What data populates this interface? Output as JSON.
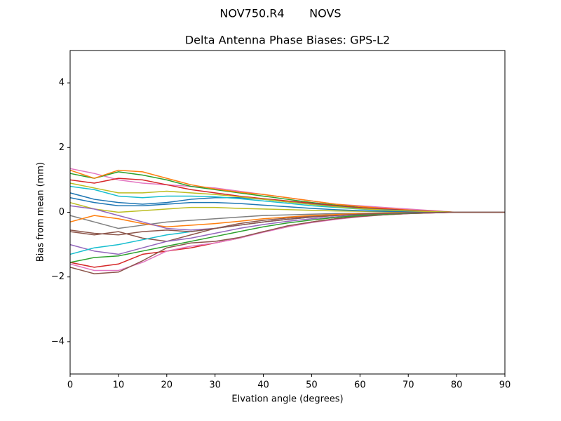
{
  "chart_data": {
    "type": "line",
    "suptitle": "NOV750.R4       NOVS",
    "title": "Delta Antenna Phase Biases: GPS-L2",
    "xlabel": "Elvation angle (degrees)",
    "ylabel": "Bias from mean (mm)",
    "x": [
      0,
      5,
      10,
      15,
      20,
      25,
      30,
      35,
      40,
      45,
      50,
      55,
      60,
      65,
      70,
      75,
      80,
      85,
      90
    ],
    "xlim": [
      0,
      90
    ],
    "xticks": [
      0,
      10,
      20,
      30,
      40,
      50,
      60,
      70,
      80,
      90
    ],
    "ylim": [
      -5,
      5
    ],
    "yticks": [
      {
        "value": -4,
        "label": "−4"
      },
      {
        "value": -2,
        "label": "−2"
      },
      0,
      2,
      4
    ],
    "series": [
      {
        "color": "#e377c2",
        "values": [
          1.35,
          1.2,
          1.0,
          0.9,
          0.85,
          0.8,
          0.75,
          0.65,
          0.55,
          0.45,
          0.35,
          0.25,
          0.2,
          0.15,
          0.1,
          0.05,
          0,
          0,
          0
        ]
      },
      {
        "color": "#2ca02c",
        "values": [
          1.2,
          1.05,
          1.25,
          1.15,
          1.0,
          0.8,
          0.7,
          0.6,
          0.5,
          0.4,
          0.3,
          0.22,
          0.15,
          0.1,
          0.06,
          0.03,
          0,
          0,
          0
        ]
      },
      {
        "color": "#ff7f0e",
        "values": [
          1.3,
          1.05,
          1.3,
          1.25,
          1.05,
          0.85,
          0.72,
          0.62,
          0.55,
          0.45,
          0.35,
          0.25,
          0.18,
          0.12,
          0.07,
          0.03,
          0,
          0,
          0
        ]
      },
      {
        "color": "#d62728",
        "values": [
          1.0,
          0.9,
          1.05,
          1.0,
          0.85,
          0.7,
          0.6,
          0.5,
          0.42,
          0.35,
          0.28,
          0.2,
          0.14,
          0.1,
          0.06,
          0.03,
          0,
          0,
          0
        ]
      },
      {
        "color": "#1f77b4",
        "values": [
          0.6,
          0.4,
          0.3,
          0.25,
          0.3,
          0.4,
          0.45,
          0.45,
          0.4,
          0.32,
          0.25,
          0.18,
          0.12,
          0.08,
          0.05,
          0.02,
          0,
          0,
          0
        ]
      },
      {
        "color": "#17becf",
        "values": [
          0.8,
          0.7,
          0.5,
          0.45,
          0.5,
          0.5,
          0.48,
          0.42,
          0.35,
          0.28,
          0.2,
          0.15,
          0.1,
          0.06,
          0.03,
          0.01,
          0,
          0,
          0
        ]
      },
      {
        "color": "#bcbd22",
        "values": [
          0.3,
          0.1,
          0,
          0.05,
          0.1,
          0.15,
          0.15,
          0.12,
          0.1,
          0.08,
          0.06,
          0.04,
          0.03,
          0.02,
          0.01,
          0,
          0,
          0,
          0
        ]
      },
      {
        "color": "#7f7f7f",
        "values": [
          -0.1,
          -0.3,
          -0.5,
          -0.4,
          -0.3,
          -0.25,
          -0.2,
          -0.15,
          -0.1,
          -0.08,
          -0.06,
          -0.04,
          -0.03,
          -0.02,
          -0.01,
          0,
          0,
          0,
          0
        ]
      },
      {
        "color": "#8c564b",
        "values": [
          -0.6,
          -0.7,
          -0.6,
          -0.8,
          -0.9,
          -0.7,
          -0.5,
          -0.35,
          -0.25,
          -0.18,
          -0.12,
          -0.08,
          -0.05,
          -0.03,
          -0.02,
          -0.01,
          0,
          0,
          0
        ]
      },
      {
        "color": "#9467bd",
        "values": [
          -1.0,
          -1.2,
          -1.3,
          -1.1,
          -0.9,
          -0.8,
          -0.65,
          -0.5,
          -0.38,
          -0.28,
          -0.2,
          -0.14,
          -0.09,
          -0.06,
          -0.03,
          -0.01,
          0,
          0,
          0
        ]
      },
      {
        "color": "#d62728",
        "values": [
          -1.55,
          -1.7,
          -1.6,
          -1.3,
          -1.2,
          -1.1,
          -0.95,
          -0.8,
          -0.6,
          -0.45,
          -0.3,
          -0.2,
          -0.12,
          -0.08,
          -0.04,
          -0.02,
          0,
          0,
          0
        ]
      },
      {
        "color": "#e377c2",
        "values": [
          -1.6,
          -1.8,
          -1.8,
          -1.55,
          -1.2,
          -1.05,
          -0.95,
          -0.8,
          -0.62,
          -0.45,
          -0.32,
          -0.22,
          -0.14,
          -0.08,
          -0.04,
          -0.02,
          0,
          0,
          0
        ]
      },
      {
        "color": "#8c564b",
        "values": [
          -1.7,
          -1.9,
          -1.85,
          -1.5,
          -1.1,
          -0.95,
          -0.9,
          -0.78,
          -0.6,
          -0.42,
          -0.3,
          -0.2,
          -0.13,
          -0.08,
          -0.04,
          -0.02,
          0,
          0,
          0
        ]
      },
      {
        "color": "#2ca02c",
        "values": [
          -1.55,
          -1.4,
          -1.35,
          -1.2,
          -1.05,
          -0.9,
          -0.75,
          -0.6,
          -0.45,
          -0.33,
          -0.24,
          -0.16,
          -0.1,
          -0.06,
          -0.03,
          -0.01,
          0,
          0,
          0
        ]
      },
      {
        "color": "#17becf",
        "values": [
          -1.3,
          -1.1,
          -1.0,
          -0.85,
          -0.7,
          -0.6,
          -0.5,
          -0.4,
          -0.3,
          -0.22,
          -0.15,
          -0.1,
          -0.06,
          -0.04,
          -0.02,
          -0.01,
          0,
          0,
          0
        ]
      },
      {
        "color": "#ff7f0e",
        "values": [
          -0.3,
          -0.1,
          -0.2,
          -0.35,
          -0.45,
          -0.4,
          -0.35,
          -0.28,
          -0.2,
          -0.15,
          -0.1,
          -0.07,
          -0.04,
          -0.03,
          -0.01,
          0,
          0,
          0,
          0
        ]
      },
      {
        "color": "#1f77b4",
        "values": [
          0.45,
          0.3,
          0.2,
          0.2,
          0.25,
          0.3,
          0.3,
          0.27,
          0.22,
          0.17,
          0.12,
          0.08,
          0.05,
          0.03,
          0.02,
          0.01,
          0,
          0,
          0
        ]
      },
      {
        "color": "#bcbd22",
        "values": [
          0.9,
          0.75,
          0.6,
          0.6,
          0.65,
          0.6,
          0.55,
          0.48,
          0.4,
          0.32,
          0.24,
          0.17,
          0.11,
          0.07,
          0.04,
          0.02,
          0,
          0,
          0
        ]
      },
      {
        "color": "#9467bd",
        "values": [
          0.2,
          0.1,
          -0.1,
          -0.3,
          -0.5,
          -0.55,
          -0.5,
          -0.4,
          -0.3,
          -0.22,
          -0.15,
          -0.1,
          -0.06,
          -0.04,
          -0.02,
          -0.01,
          0,
          0,
          0
        ]
      },
      {
        "color": "#8c564b",
        "values": [
          -0.55,
          -0.65,
          -0.7,
          -0.6,
          -0.55,
          -0.6,
          -0.5,
          -0.4,
          -0.3,
          -0.22,
          -0.15,
          -0.1,
          -0.06,
          -0.04,
          -0.02,
          -0.01,
          0,
          0,
          0
        ]
      }
    ]
  }
}
